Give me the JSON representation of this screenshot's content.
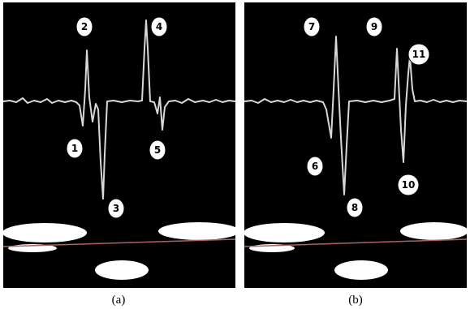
{
  "panels": [
    {
      "caption": "(a)",
      "labels": [
        "1",
        "2",
        "3",
        "4",
        "5"
      ]
    },
    {
      "caption": "(b)",
      "labels": [
        "6",
        "7",
        "8",
        "9",
        "10",
        "11"
      ]
    }
  ]
}
